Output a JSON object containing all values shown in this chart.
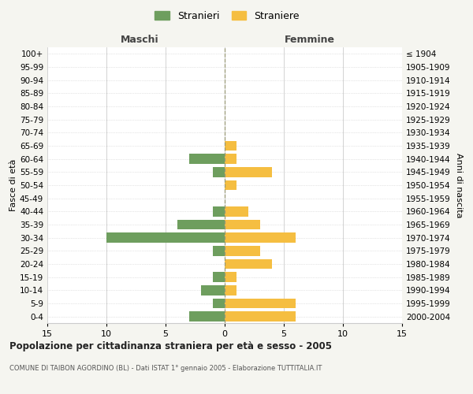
{
  "age_groups": [
    "0-4",
    "5-9",
    "10-14",
    "15-19",
    "20-24",
    "25-29",
    "30-34",
    "35-39",
    "40-44",
    "45-49",
    "50-54",
    "55-59",
    "60-64",
    "65-69",
    "70-74",
    "75-79",
    "80-84",
    "85-89",
    "90-94",
    "95-99",
    "100+"
  ],
  "birth_years": [
    "2000-2004",
    "1995-1999",
    "1990-1994",
    "1985-1989",
    "1980-1984",
    "1975-1979",
    "1970-1974",
    "1965-1969",
    "1960-1964",
    "1955-1959",
    "1950-1954",
    "1945-1949",
    "1940-1944",
    "1935-1939",
    "1930-1934",
    "1925-1929",
    "1920-1924",
    "1915-1919",
    "1910-1914",
    "1905-1909",
    "≤ 1904"
  ],
  "maschi": [
    3,
    1,
    2,
    1,
    0,
    1,
    10,
    4,
    1,
    0,
    0,
    1,
    3,
    0,
    0,
    0,
    0,
    0,
    0,
    0,
    0
  ],
  "femmine": [
    6,
    6,
    1,
    1,
    4,
    3,
    6,
    3,
    2,
    0,
    1,
    4,
    1,
    1,
    0,
    0,
    0,
    0,
    0,
    0,
    0
  ],
  "maschi_color": "#6e9e5e",
  "femmine_color": "#f5be41",
  "xlim": 15,
  "title": "Popolazione per cittadinanza straniera per età e sesso - 2005",
  "subtitle": "COMUNE DI TAIBON AGORDINO (BL) - Dati ISTAT 1° gennaio 2005 - Elaborazione TUTTITALIA.IT",
  "ylabel_left": "Fasce di età",
  "ylabel_right": "Anni di nascita",
  "header_left": "Maschi",
  "header_right": "Femmine",
  "legend_maschi": "Stranieri",
  "legend_femmine": "Straniere",
  "background_color": "#f5f5f0",
  "bar_background": "#ffffff",
  "grid_color": "#cccccc",
  "tick_vals": [
    -15,
    -10,
    -5,
    0,
    5,
    10,
    15
  ]
}
